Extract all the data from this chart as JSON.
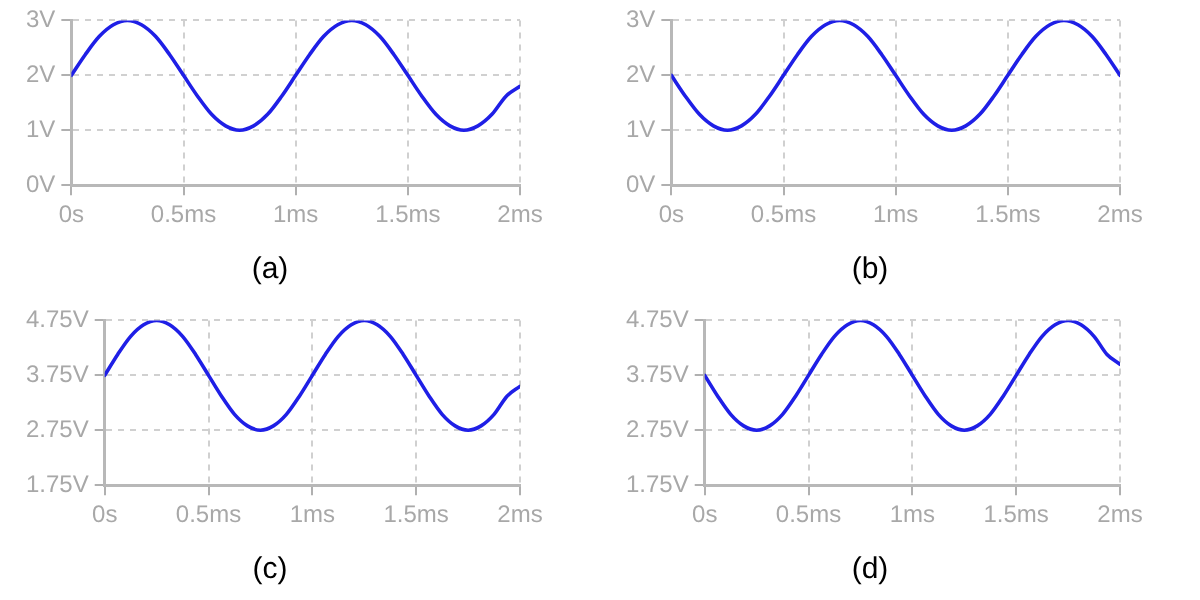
{
  "chart_data": [
    {
      "type": "line",
      "title": "(a)",
      "marker": "none",
      "grid": true,
      "x": [
        0,
        0.0625,
        0.125,
        0.1875,
        0.25,
        0.3125,
        0.375,
        0.4375,
        0.5,
        0.5625,
        0.625,
        0.6875,
        0.75,
        0.8125,
        0.875,
        0.9375,
        1,
        1.0625,
        1.125,
        1.1875,
        1.25,
        1.3125,
        1.375,
        1.4375,
        1.5,
        1.5625,
        1.625,
        1.6875,
        1.75,
        1.8125,
        1.875,
        1.9375,
        2
      ],
      "series": [
        {
          "color": "#1f1fe6",
          "values": [
            2,
            2.38,
            2.71,
            2.92,
            3,
            2.92,
            2.71,
            2.38,
            2,
            1.62,
            1.29,
            1.08,
            1,
            1.08,
            1.29,
            1.62,
            2,
            2.38,
            2.71,
            2.92,
            3,
            2.92,
            2.71,
            2.38,
            2,
            1.62,
            1.29,
            1.08,
            1,
            1.08,
            1.29,
            1.62,
            1.8
          ]
        }
      ],
      "xlim": [
        0,
        2
      ],
      "xticks": [
        {
          "value": 0,
          "label": "0s"
        },
        {
          "value": 0.5,
          "label": "0.5ms"
        },
        {
          "value": 1,
          "label": "1ms"
        },
        {
          "value": 1.5,
          "label": "1.5ms"
        },
        {
          "value": 2,
          "label": "2ms"
        }
      ],
      "ylim": [
        0,
        3
      ],
      "yticks": [
        {
          "value": 0,
          "label": "0V"
        },
        {
          "value": 1,
          "label": "1V"
        },
        {
          "value": 2,
          "label": "2V"
        },
        {
          "value": 3,
          "label": "3V"
        }
      ]
    },
    {
      "type": "line",
      "title": "(b)",
      "marker": "none",
      "grid": true,
      "x": [
        0,
        0.0625,
        0.125,
        0.1875,
        0.25,
        0.3125,
        0.375,
        0.4375,
        0.5,
        0.5625,
        0.625,
        0.6875,
        0.75,
        0.8125,
        0.875,
        0.9375,
        1,
        1.0625,
        1.125,
        1.1875,
        1.25,
        1.3125,
        1.375,
        1.4375,
        1.5,
        1.5625,
        1.625,
        1.6875,
        1.75,
        1.8125,
        1.875,
        1.9375,
        2
      ],
      "series": [
        {
          "color": "#1f1fe6",
          "values": [
            2,
            1.62,
            1.29,
            1.08,
            1,
            1.08,
            1.29,
            1.62,
            2,
            2.38,
            2.71,
            2.92,
            3,
            2.92,
            2.71,
            2.38,
            2,
            1.62,
            1.29,
            1.08,
            1,
            1.08,
            1.29,
            1.62,
            2,
            2.38,
            2.71,
            2.92,
            3,
            2.92,
            2.71,
            2.38,
            2
          ]
        }
      ],
      "xlim": [
        0,
        2
      ],
      "xticks": [
        {
          "value": 0,
          "label": "0s"
        },
        {
          "value": 0.5,
          "label": "0.5ms"
        },
        {
          "value": 1,
          "label": "1ms"
        },
        {
          "value": 1.5,
          "label": "1.5ms"
        },
        {
          "value": 2,
          "label": "2ms"
        }
      ],
      "ylim": [
        0,
        3
      ],
      "yticks": [
        {
          "value": 0,
          "label": "0V"
        },
        {
          "value": 1,
          "label": "1V"
        },
        {
          "value": 2,
          "label": "2V"
        },
        {
          "value": 3,
          "label": "3V"
        }
      ]
    },
    {
      "type": "line",
      "title": "(c)",
      "marker": "none",
      "grid": true,
      "x": [
        0,
        0.0625,
        0.125,
        0.1875,
        0.25,
        0.3125,
        0.375,
        0.4375,
        0.5,
        0.5625,
        0.625,
        0.6875,
        0.75,
        0.8125,
        0.875,
        0.9375,
        1,
        1.0625,
        1.125,
        1.1875,
        1.25,
        1.3125,
        1.375,
        1.4375,
        1.5,
        1.5625,
        1.625,
        1.6875,
        1.75,
        1.8125,
        1.875,
        1.9375,
        2
      ],
      "series": [
        {
          "color": "#1f1fe6",
          "values": [
            3.75,
            4.13,
            4.46,
            4.67,
            4.75,
            4.67,
            4.46,
            4.13,
            3.75,
            3.37,
            3.04,
            2.83,
            2.75,
            2.83,
            3.04,
            3.37,
            3.75,
            4.13,
            4.46,
            4.67,
            4.75,
            4.67,
            4.46,
            4.13,
            3.75,
            3.37,
            3.04,
            2.83,
            2.75,
            2.83,
            3.04,
            3.37,
            3.55
          ]
        }
      ],
      "xlim": [
        0,
        2
      ],
      "xticks": [
        {
          "value": 0,
          "label": "0s"
        },
        {
          "value": 0.5,
          "label": "0.5ms"
        },
        {
          "value": 1,
          "label": "1ms"
        },
        {
          "value": 1.5,
          "label": "1.5ms"
        },
        {
          "value": 2,
          "label": "2ms"
        }
      ],
      "ylim": [
        1.75,
        4.75
      ],
      "yticks": [
        {
          "value": 1.75,
          "label": "1.75V"
        },
        {
          "value": 2.75,
          "label": "2.75V"
        },
        {
          "value": 3.75,
          "label": "3.75V"
        },
        {
          "value": 4.75,
          "label": "4.75V"
        }
      ]
    },
    {
      "type": "line",
      "title": "(d)",
      "marker": "none",
      "grid": true,
      "x": [
        0,
        0.0625,
        0.125,
        0.1875,
        0.25,
        0.3125,
        0.375,
        0.4375,
        0.5,
        0.5625,
        0.625,
        0.6875,
        0.75,
        0.8125,
        0.875,
        0.9375,
        1,
        1.0625,
        1.125,
        1.1875,
        1.25,
        1.3125,
        1.375,
        1.4375,
        1.5,
        1.5625,
        1.625,
        1.6875,
        1.75,
        1.8125,
        1.875,
        1.9375,
        2
      ],
      "series": [
        {
          "color": "#1f1fe6",
          "values": [
            3.75,
            3.37,
            3.04,
            2.83,
            2.75,
            2.83,
            3.04,
            3.37,
            3.75,
            4.13,
            4.46,
            4.67,
            4.75,
            4.67,
            4.46,
            4.13,
            3.75,
            3.37,
            3.04,
            2.83,
            2.75,
            2.83,
            3.04,
            3.37,
            3.75,
            4.13,
            4.46,
            4.67,
            4.75,
            4.67,
            4.46,
            4.13,
            3.95
          ]
        }
      ],
      "xlim": [
        0,
        2
      ],
      "xticks": [
        {
          "value": 0,
          "label": "0s"
        },
        {
          "value": 0.5,
          "label": "0.5ms"
        },
        {
          "value": 1,
          "label": "1ms"
        },
        {
          "value": 1.5,
          "label": "1.5ms"
        },
        {
          "value": 2,
          "label": "2ms"
        }
      ],
      "ylim": [
        1.75,
        4.75
      ],
      "yticks": [
        {
          "value": 1.75,
          "label": "1.75V"
        },
        {
          "value": 2.75,
          "label": "2.75V"
        },
        {
          "value": 3.75,
          "label": "3.75V"
        },
        {
          "value": 4.75,
          "label": "4.75V"
        }
      ]
    }
  ]
}
